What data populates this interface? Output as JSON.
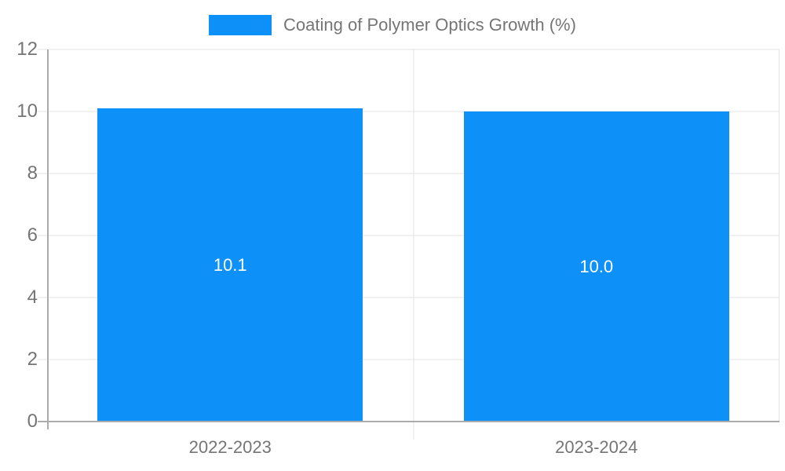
{
  "chart_data": {
    "type": "bar",
    "title": "",
    "legend": {
      "position": "top",
      "label": "Coating of Polymer Optics Growth (%)"
    },
    "categories": [
      "2022-2023",
      "2023-2024"
    ],
    "series": [
      {
        "name": "Coating of Polymer Optics Growth (%)",
        "values": [
          10.1,
          10.0
        ],
        "value_labels": [
          "10.1",
          "10.0"
        ]
      }
    ],
    "xlabel": "",
    "ylabel": "",
    "ylim": [
      0,
      12
    ],
    "yticks": [
      0,
      2,
      4,
      6,
      8,
      10,
      12
    ],
    "grid": true
  },
  "colors": {
    "bar": "#0D90F8",
    "bar_label": "#FFFFFF",
    "grid": "#E3E3E3",
    "axis": "#ABABAB",
    "text": "#757575",
    "background": "#FFFFFF"
  }
}
